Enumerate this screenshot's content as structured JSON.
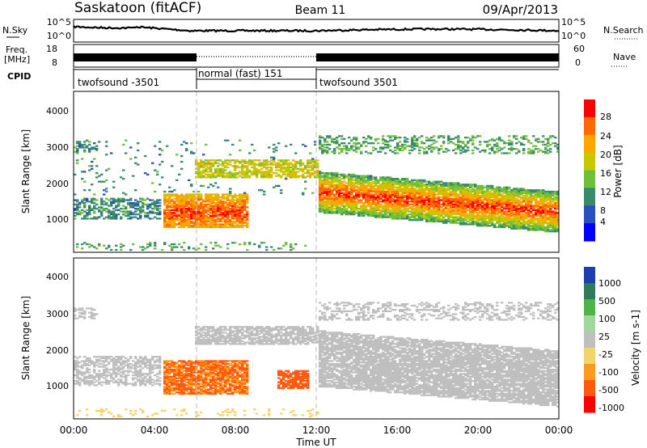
{
  "header": {
    "station": "Saskatoon (fitACF)",
    "beam": "Beam 11",
    "date": "09/Apr/2013"
  },
  "noise_panel": {
    "left_label": "N.Sky",
    "right_label": "N.Search",
    "left_ticks": [
      "10^5",
      "10^0"
    ],
    "right_ticks": [
      "10^5",
      "10^0"
    ]
  },
  "freq_panel": {
    "left_label_1": "Freq.",
    "left_label_2": "[MHz]",
    "left_ticks": [
      "18",
      "8"
    ],
    "right_label": "Nave",
    "right_ticks": [
      "60",
      "0"
    ]
  },
  "cpid_panel": {
    "label": "CPID",
    "segments": [
      {
        "label": "twofsound -3501",
        "start_hour": 0,
        "end_hour": 6
      },
      {
        "label": "normal (fast) 151",
        "start_hour": 6,
        "end_hour": 12
      },
      {
        "label": "twofsound 3501",
        "start_hour": 12,
        "end_hour": 24
      }
    ]
  },
  "power_panel": {
    "ylabel": "Slant Range [km]",
    "yticks": [
      "4000",
      "3000",
      "2000",
      "1000"
    ],
    "colorbar_label": "Power [dB]",
    "colorbar_ticks": [
      "28",
      "24",
      "20",
      "16",
      "12",
      "8",
      "4"
    ],
    "colorbar_colors": [
      "#ff0000",
      "#ff6a00",
      "#ffa500",
      "#c8c800",
      "#6fbe3c",
      "#3a8a6e",
      "#2a4fc0",
      "#0000ff"
    ]
  },
  "velocity_panel": {
    "ylabel": "Slant Range [km]",
    "yticks": [
      "4000",
      "3000",
      "2000",
      "1000"
    ],
    "colorbar_label": "Velocity [m s-1]",
    "colorbar_ticks": [
      "1000",
      "500",
      "100",
      "25",
      "-25",
      "-100",
      "-500",
      "-1000"
    ],
    "colorbar_colors": [
      "#1c3fb0",
      "#2f7a5a",
      "#4fb34a",
      "#9fd89a",
      "#bfbfbf",
      "#f5d36b",
      "#ff9a1f",
      "#ff5a10",
      "#ff0000"
    ]
  },
  "xaxis": {
    "label": "Time UT",
    "ticks": [
      "00:00",
      "04:00",
      "08:00",
      "12:00",
      "16:00",
      "20:00",
      "00:00"
    ]
  },
  "chart_data": {
    "type": "heatmap",
    "x_range_hours": [
      0,
      24
    ],
    "y_range_km": [
      200,
      4500
    ],
    "panels": [
      "power",
      "velocity"
    ],
    "power_features": [
      {
        "time_hours": [
          4.5,
          8.5
        ],
        "range_km": [
          800,
          1700
        ],
        "power_db": 28
      },
      {
        "time_hours": [
          12.0,
          24.0
        ],
        "range_km": [
          1000,
          2200
        ],
        "power_db": 24
      },
      {
        "time_hours": [
          6.0,
          12.0
        ],
        "range_km": [
          2200,
          2600
        ],
        "power_db": 16
      },
      {
        "time_hours": [
          0.0,
          4.0
        ],
        "range_km": [
          1100,
          1600
        ],
        "power_db": 8
      }
    ],
    "velocity_features": [
      {
        "time_hours": [
          4.5,
          8.5
        ],
        "range_km": [
          800,
          1700
        ],
        "velocity_ms": -300
      },
      {
        "time_hours": [
          10.0,
          11.5
        ],
        "range_km": [
          1000,
          1500
        ],
        "velocity_ms": -200
      },
      {
        "time_hours": [
          12.0,
          24.0
        ],
        "range_km": [
          1000,
          2600
        ],
        "velocity_ms": 0
      }
    ]
  }
}
